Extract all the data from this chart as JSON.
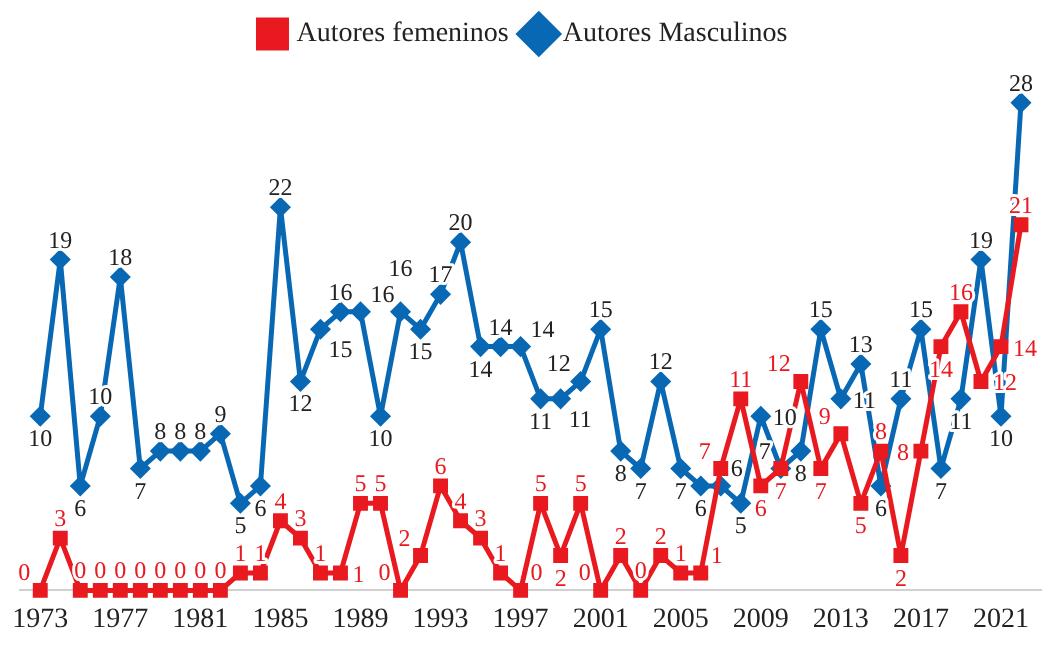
{
  "chart_data": {
    "type": "line",
    "x": [
      1973,
      1974,
      1975,
      1976,
      1977,
      1978,
      1979,
      1980,
      1981,
      1982,
      1983,
      1984,
      1985,
      1986,
      1987,
      1988,
      1989,
      1990,
      1991,
      1992,
      1993,
      1994,
      1995,
      1996,
      1997,
      1998,
      1999,
      2000,
      2001,
      2002,
      2003,
      2004,
      2005,
      2006,
      2007,
      2008,
      2009,
      2010,
      2011,
      2012,
      2013,
      2014,
      2015,
      2016,
      2017,
      2018,
      2019,
      2020,
      2021,
      2022
    ],
    "series": [
      {
        "name": "Autores femeninos",
        "color": "#e8191f",
        "marker": "square",
        "values": [
          0,
          3,
          0,
          0,
          0,
          0,
          0,
          0,
          0,
          0,
          1,
          1,
          4,
          3,
          1,
          1,
          5,
          5,
          0,
          2,
          6,
          4,
          3,
          1,
          0,
          5,
          2,
          5,
          0,
          2,
          0,
          2,
          1,
          1,
          7,
          11,
          6,
          7,
          12,
          7,
          9,
          5,
          8,
          2,
          8,
          14,
          16,
          12,
          14,
          21
        ]
      },
      {
        "name": "Autores Masculinos",
        "color": "#0868b4",
        "marker": "diamond",
        "values": [
          10,
          19,
          6,
          10,
          18,
          7,
          8,
          8,
          8,
          9,
          5,
          6,
          22,
          12,
          15,
          16,
          16,
          10,
          16,
          15,
          17,
          20,
          14,
          14,
          14,
          11,
          11,
          12,
          15,
          8,
          7,
          12,
          7,
          6,
          6,
          5,
          10,
          7,
          8,
          15,
          11,
          13,
          6,
          11,
          15,
          7,
          11,
          19,
          10,
          28
        ]
      }
    ],
    "xlim": [
      1972,
      2023
    ],
    "xticks": [
      1973,
      1977,
      1981,
      1985,
      1989,
      1993,
      1997,
      2001,
      2005,
      2009,
      2013,
      2017,
      2021
    ],
    "tick_labels": "x",
    "grid": false,
    "legend": "top",
    "data_labels": true,
    "line_style": "solid"
  }
}
